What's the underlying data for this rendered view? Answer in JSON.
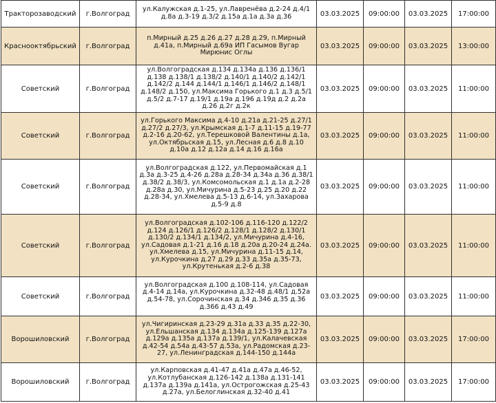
{
  "rows": [
    {
      "district": "Тракторозаводский",
      "city": "г.Волгоград",
      "address": "ул.Калужская д.1-25, ул.Лавренёва д.2-24 д.4/1 д.8а д.3-19 д.3/2 д.15а д.1а д.3а д.36",
      "start_date": "03.03.2025",
      "start_time": "09:00:00",
      "end_date": "03.03.2025",
      "end_time": "17:00:00"
    },
    {
      "district": "Краснооктябрьский",
      "city": "г.Волгоград",
      "address": "п.Мирный д.25 д.26 д.27 д.28 д.29, п.Мирный д.41а, п.Мирный д.69а ИП Гасымов Вугар Мирюнис Оглы",
      "start_date": "03.03.2025",
      "start_time": "09:00:00",
      "end_date": "03.03.2025",
      "end_time": "13:00:00"
    },
    {
      "district": "Советский",
      "city": "г.Волгоград",
      "address": "ул.Волгоградская д.134 д.134а д.136 д.136/1 д.138 д.138/1 д.138/2 д.140/1 д.140/2 д.142/1 д.142/2 д.144 д.144/1 д.146/1 д.146/2 д.148/1 д.148/2 д.150, ул.Максима Горького д.1 д.3 д.5/1 д.5/2 д.7-17 д.19/1 д.19а д.196 д.19д д.2 д.2а д.26 д.2г д.2к",
      "start_date": "03.03.2025",
      "start_time": "09:00:00",
      "end_date": "03.03.2025",
      "end_time": "11:00:00"
    },
    {
      "district": "Советский",
      "city": "г.Волгоград",
      "address": "ул.Горького Максима д.4-10 д.21а д.21-25 д.27/1 д.27/2 д.27/3, ул.Крымская д.1-7 д.11-15 д.19-77 д.2-16 д.20-62, ул.Терешковой Валентины д.1а, ул.Октябрьская д.15, ул.Лесная д.6 д.8 д.10 д.10а д.12 д.12а д.14 д.16 д.16а",
      "start_date": "03.03.2025",
      "start_time": "09:00:00",
      "end_date": "03.03.2025",
      "end_time": "11:00:00"
    },
    {
      "district": "Советский",
      "city": "г.Волгоград",
      "address": "ул.Волгоградская д.122, ул.Первомайская д.1 д.3а д.3-25 д.4-26 д.28а д.28-34 д.34а д.36 д.38/1 д.38/2 д.38/3, ул.Комсомольская д.1 д.1а д.2-28 д.28а д.30, ул.Мичурина д.5-23 д.25 д.20 д.22 д.28-34, ул.Хмелева д.5-13 д.6-14, ул.Захарова д.5-9 д.8",
      "start_date": "03.03.2025",
      "start_time": "09:00:00",
      "end_date": "03.03.2025",
      "end_time": "11:00:00"
    },
    {
      "district": "Советский",
      "city": "г.Волгоград",
      "address": "ул.Волгоградская д.102-106 д.116-120 д.122/2 д.124 д.126/1 д.126/2 д.128/1 д.128/2 д.130/1 д.130/2 д.134/1 д.134/2, ул.Мичурина д.4-16, ул.Садовая д.1-21 д.16 д.18 д.20а д.20-24 д.24а. ул.Хмелева д.15, ул.Мичурина д.11-15 д.14, ул.Курочкина д.27 д.29 д.33 д.35а д.35-73, ул.Крутенькая д.2-6 д.38",
      "start_date": "03.03.2025",
      "start_time": "09:00:00",
      "end_date": "03.03.2025",
      "end_time": "11:00:00"
    },
    {
      "district": "Советский",
      "city": "г.Волгоград",
      "address": "ул.Волгоградская д.100 д.108-114, ул.Садовая д.4-14 д.14а, ул.Курочкина д.32-48 д.48/1 д.52а д.54-78, ул.Сорочинская д.34 д.346 д.35 д.36 д.366 д.43 д.49",
      "start_date": "03.03.2025",
      "start_time": "09:00:00",
      "end_date": "03.03.2025",
      "end_time": "11:00:00"
    },
    {
      "district": "Ворошиловский",
      "city": "г.Волгоград",
      "address": "ул.Чигиринская д.23-29 д.31а д.33 д.35 д.22-30, ул.Ельшанская д.134 д.134а д.125-139 д.127а д.129а д.135а д.137а д.139/1, ул.Калачевская д.42-54 д.54а д.43-57 д.53а, ул.Радомская д.23-27, ул.Ленинградская д.144-150 д.144а",
      "start_date": "03.03.2025",
      "start_time": "09:00:00",
      "end_date": "03.03.2025",
      "end_time": "17:00:00"
    },
    {
      "district": "Ворошиловский",
      "city": "г.Волгоград",
      "address": "ул.Карповская д.41-47 д.41а д.47а д.46-52, ул.Котлубанская д.126-142 д.138а д.131-141 д.137а д.139а д.141а, ул.Острогожская д.25-43 д.27а, ул.Белоглинская д.32-40 д.41",
      "start_date": "03.03.2025",
      "start_time": "09:00:00",
      "end_date": "03.03.2025",
      "end_time": "17:00:00"
    }
  ]
}
